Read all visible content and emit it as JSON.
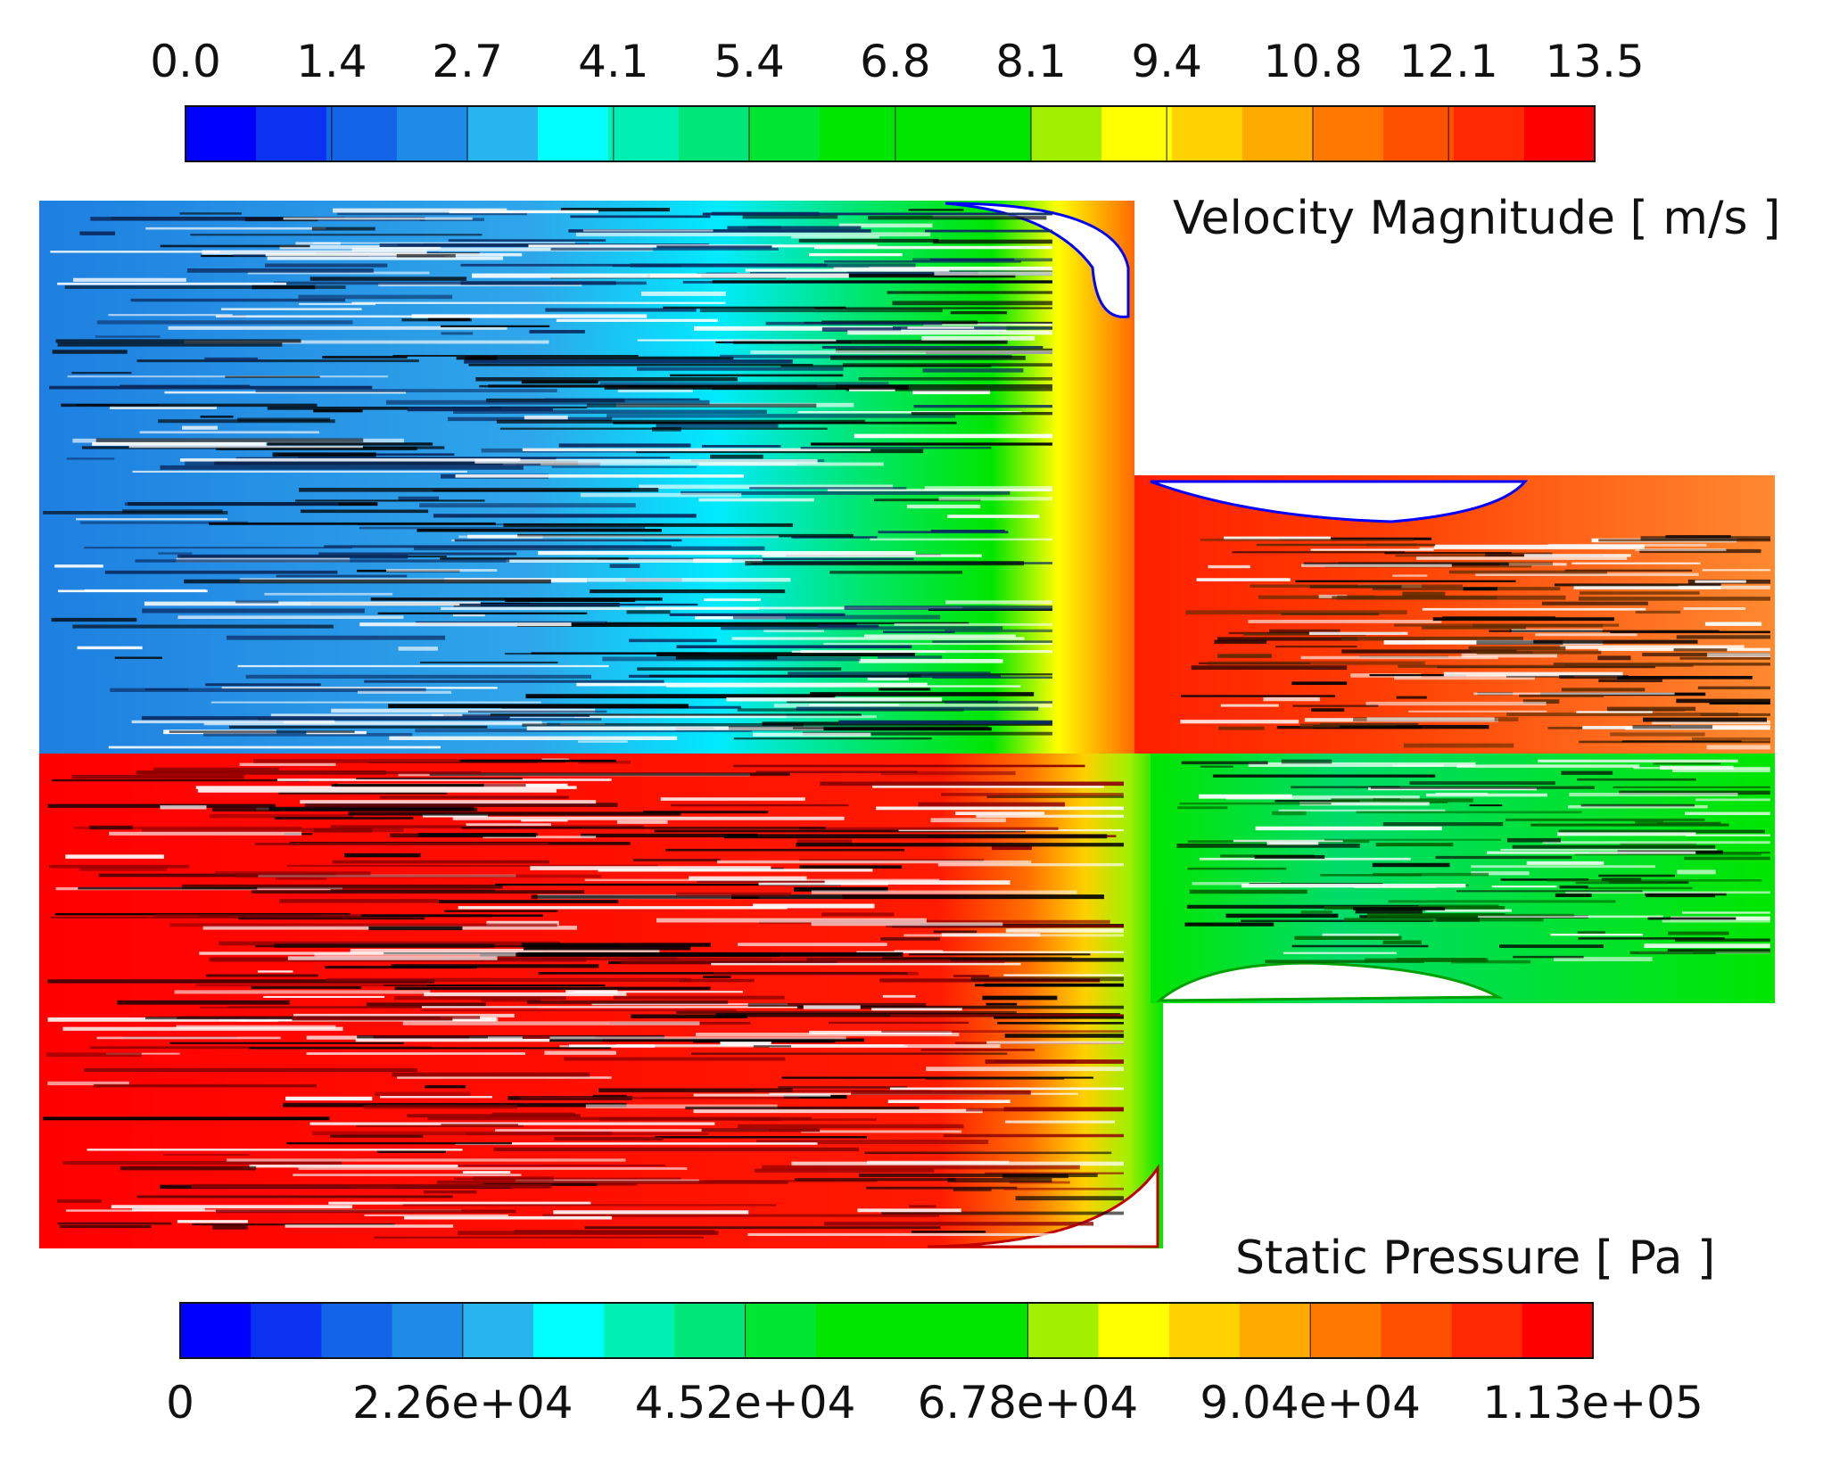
{
  "chart_data": [
    {
      "type": "heatmap",
      "title": "Velocity Magnitude [ m/s ]",
      "field": "velocity",
      "region": "upper half of nozzle",
      "colorbar_position": "top",
      "unit": "m/s",
      "range": [
        0.0,
        13.5
      ],
      "tick_labels": [
        "0.0",
        "1.4",
        "2.7",
        "4.1",
        "5.4",
        "6.8",
        "8.1",
        "9.4",
        "10.8",
        "12.1",
        "13.5"
      ],
      "tick_values": [
        0.0,
        1.4,
        2.7,
        4.1,
        5.4,
        6.8,
        8.1,
        9.4,
        10.8,
        12.1,
        13.5
      ],
      "levels": 20
    },
    {
      "type": "heatmap",
      "title": "Static Pressure [ Pa ]",
      "field": "pressure",
      "region": "lower half of nozzle",
      "colorbar_position": "bottom",
      "unit": "Pa",
      "range": [
        0,
        113000
      ],
      "tick_labels": [
        "0",
        "2.26e+04",
        "4.52e+04",
        "6.78e+04",
        "9.04e+04",
        "1.13e+05"
      ],
      "tick_values": [
        0,
        22600,
        45200,
        67800,
        90400,
        113000
      ],
      "levels": 20
    }
  ],
  "colormap": [
    "#0000ff",
    "#0a32f0",
    "#1464e8",
    "#1e8ce6",
    "#28b4ee",
    "#00ffff",
    "#00f0b4",
    "#00e678",
    "#00e632",
    "#00e600",
    "#00e600",
    "#00e600",
    "#a0f000",
    "#ffff00",
    "#ffd200",
    "#ffaa00",
    "#ff7800",
    "#ff5000",
    "#ff2800",
    "#ff0000"
  ]
}
